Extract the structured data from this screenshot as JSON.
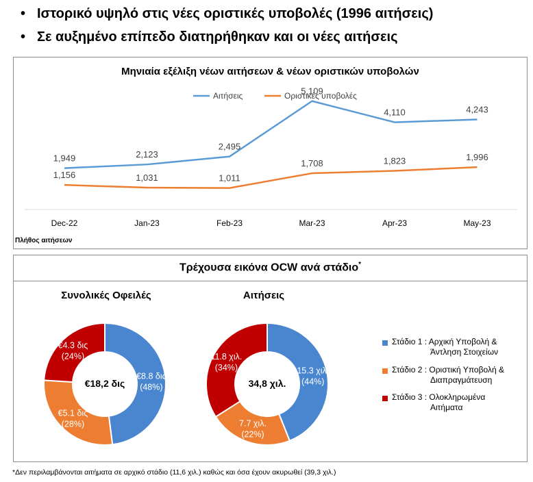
{
  "bullets": [
    "Ιστορικό υψηλό στις νέες οριστικές υποβολές (1996 αιτήσεις)",
    "Σε αυξημένο επίπεδο διατηρήθηκαν και οι νέες αιτήσεις"
  ],
  "bullet_symbol": "•",
  "colors": {
    "blue": "#5b9bd5",
    "orange": "#ed7d31",
    "dark_red": "#c00000",
    "grid": "#d9d9d9"
  },
  "chart_data": [
    {
      "type": "line",
      "title": "Μηνιαία εξέλιξη νέων αιτήσεων & νέων οριστικών υποβολών",
      "categories": [
        "Dec-22",
        "Jan-23",
        "Feb-23",
        "Mar-23",
        "Apr-23",
        "May-23"
      ],
      "series": [
        {
          "name": "Αιτήσεις",
          "values": [
            1949,
            2123,
            2495,
            5109,
            4110,
            4243
          ],
          "labels": [
            "1,949",
            "2,123",
            "2,495",
            "5,109",
            "4,110",
            "4,243"
          ],
          "color": "#5b9bd5"
        },
        {
          "name": "Οριστικές υποβολές",
          "values": [
            1156,
            1031,
            1011,
            1708,
            1823,
            1996
          ],
          "labels": [
            "1,156",
            "1,031",
            "1,011",
            "1,708",
            "1,823",
            "1,996"
          ],
          "color": "#ed7d31"
        }
      ],
      "ylabel": "Πλήθος αιτήσεων",
      "ylim": [
        0,
        6000
      ],
      "legend": "top-center"
    },
    {
      "type": "pie",
      "title": "Συνολικές Οφειλές",
      "center_label": "€18,2 δις",
      "slices": [
        {
          "name": "Στάδιο 1",
          "value": 48,
          "label_lines": [
            "€8.8 δις",
            "(48%)"
          ],
          "color": "#4a86cf"
        },
        {
          "name": "Στάδιο 2",
          "value": 28,
          "label_lines": [
            "€5.1 δις",
            "(28%)"
          ],
          "color": "#ed7d31"
        },
        {
          "name": "Στάδιο 3",
          "value": 24,
          "label_lines": [
            "€4.3 δις",
            "(24%)"
          ],
          "color": "#c00000"
        }
      ]
    },
    {
      "type": "pie",
      "title": "Αιτήσεις",
      "center_label": "34,8 χιλ.",
      "slices": [
        {
          "name": "Στάδιο 1",
          "value": 44,
          "label_lines": [
            "15.3 χιλ.",
            "(44%)"
          ],
          "color": "#4a86cf"
        },
        {
          "name": "Στάδιο 2",
          "value": 22,
          "label_lines": [
            "7.7 χιλ.",
            "(22%)"
          ],
          "color": "#ed7d31"
        },
        {
          "name": "Στάδιο 3",
          "value": 34,
          "label_lines": [
            "11.8 χιλ.",
            "(34%)"
          ],
          "color": "#c00000"
        }
      ]
    }
  ],
  "ocw_panel": {
    "title": "Τρέχουσα εικόνα OCW ανά στάδιο",
    "title_sup": "*",
    "legend": [
      {
        "lines": [
          "Στάδιο 1 : Αρχική Υποβολή &",
          "Άντληση Στοιχείων"
        ],
        "color": "#4a86cf"
      },
      {
        "lines": [
          "Στάδιο 2 : Οριστική Υποβολή &",
          "Διαπραγμάτευση"
        ],
        "color": "#ed7d31"
      },
      {
        "lines": [
          "Στάδιο 3 : Ολοκληρωμένα",
          "Αιτήματα"
        ],
        "color": "#c00000"
      }
    ]
  },
  "footnote": "*Δεν περιλαμβάνονται αιτήματα σε αρχικό στάδιο (11,6 χιλ.) καθώς και όσα έχουν ακυρωθεί (39,3 χιλ.)"
}
